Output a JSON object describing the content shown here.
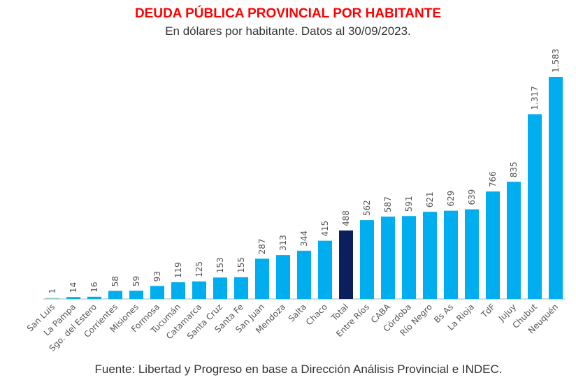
{
  "chart_data": {
    "type": "bar",
    "title": "DEUDA PÚBLICA PROVINCIAL POR HABITANTE",
    "subtitle": "En dólares por habitante. Datos al 30/09/2023.",
    "source": "Fuente: Libertad y Progreso en base a Dirección Análisis Provincial e INDEC.",
    "xlabel": "",
    "ylabel": "",
    "ylim": [
      0,
      1583
    ],
    "categories": [
      "San Luis",
      "La Pampa",
      "Sgo. del Estero",
      "Corrientes",
      "Misiones",
      "Formosa",
      "Tucumán",
      "Catamarca",
      "Santa Cruz",
      "Santa Fe",
      "San Juan",
      "Mendoza",
      "Salta",
      "Chaco",
      "Total",
      "Entre Ríos",
      "CABA",
      "Córdoba",
      "Río Negro",
      "Bs As",
      "La Rioja",
      "TdF",
      "Jujuy",
      "Chubut",
      "Neuquén"
    ],
    "values": [
      1,
      14,
      16,
      58,
      59,
      93,
      119,
      125,
      153,
      155,
      287,
      313,
      344,
      415,
      488,
      562,
      587,
      591,
      621,
      629,
      639,
      766,
      835,
      1317,
      1583
    ],
    "value_labels": [
      "1",
      "14",
      "16",
      "58",
      "59",
      "93",
      "119",
      "125",
      "153",
      "155",
      "287",
      "313",
      "344",
      "415",
      "488",
      "562",
      "587",
      "591",
      "621",
      "629",
      "639",
      "766",
      "835",
      "1.317",
      "1.583"
    ],
    "highlight": "Total",
    "colors": {
      "bar": "#00AEEF",
      "highlight": "#0A1F5C",
      "san_luis": "#8FC9C9"
    }
  }
}
